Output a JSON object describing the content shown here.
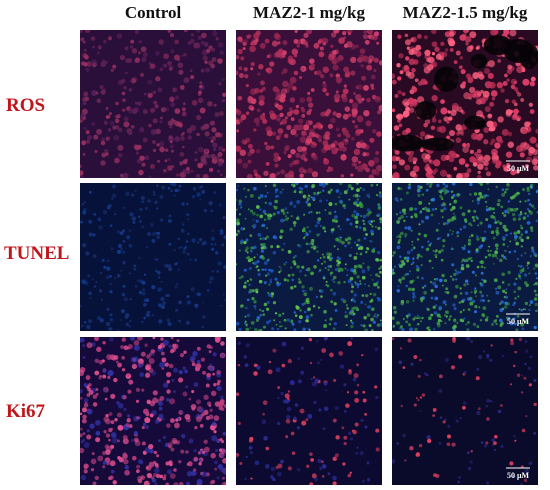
{
  "columns": [
    "Control",
    "MAZ2-1 mg/kg",
    "MAZ2-1.5 mg/kg"
  ],
  "rows": [
    "ROS",
    "TUNEL",
    "Ki67"
  ],
  "scale_bar_labels": [
    "50 μM",
    "50 μM",
    "50 μM"
  ]
}
